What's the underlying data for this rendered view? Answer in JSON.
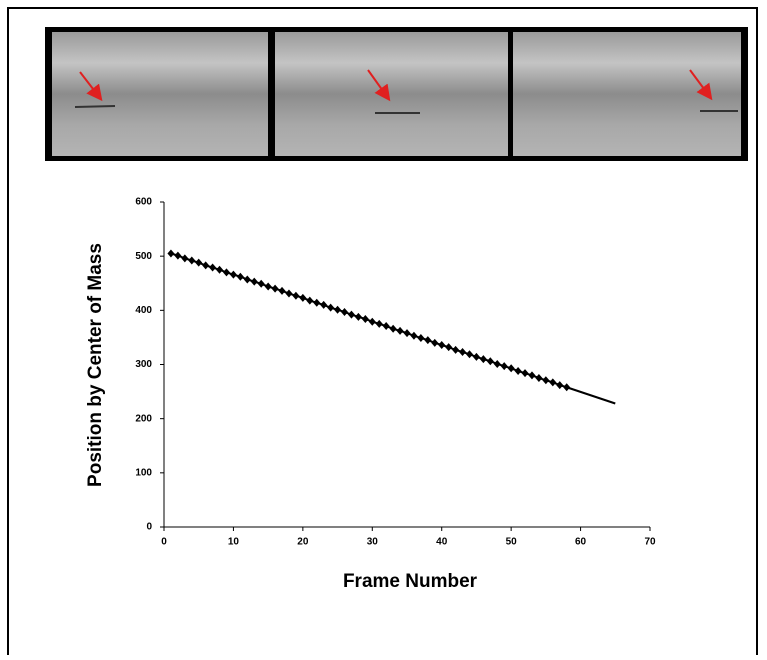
{
  "chart_data": {
    "type": "line",
    "xlabel": "Frame Number",
    "ylabel": "Position by Center of Mass",
    "xlim": [
      0,
      70
    ],
    "xticks": [
      0,
      10,
      20,
      30,
      40,
      50,
      60,
      70
    ],
    "ylim": [
      0,
      600
    ],
    "yticks": [
      0,
      100,
      200,
      300,
      400,
      500,
      600
    ],
    "grid": false,
    "series": [
      {
        "color": "#000000",
        "marker": "diamond",
        "x": [
          1,
          2,
          3,
          4,
          5,
          6,
          7,
          8,
          9,
          10,
          11,
          12,
          13,
          14,
          15,
          16,
          17,
          18,
          19,
          20,
          21,
          22,
          23,
          24,
          25,
          26,
          27,
          28,
          29,
          30,
          31,
          32,
          33,
          34,
          35,
          36,
          37,
          38,
          39,
          40,
          41,
          42,
          43,
          44,
          45,
          46,
          47,
          48,
          49,
          50,
          51,
          52,
          53,
          54,
          55,
          56,
          57,
          58
        ],
        "values": [
          505,
          501,
          496,
          492,
          488,
          483,
          479,
          475,
          470,
          466,
          462,
          457,
          453,
          449,
          444,
          440,
          436,
          431,
          427,
          423,
          418,
          414,
          410,
          405,
          401,
          397,
          392,
          388,
          384,
          379,
          375,
          371,
          366,
          362,
          358,
          353,
          349,
          345,
          340,
          336,
          332,
          327,
          323,
          319,
          314,
          310,
          306,
          301,
          297,
          293,
          288,
          284,
          280,
          275,
          271,
          267,
          262,
          258
        ]
      },
      {
        "color": "#000000",
        "marker": "none",
        "x": [
          58,
          65
        ],
        "values": [
          258,
          228
        ]
      }
    ]
  }
}
